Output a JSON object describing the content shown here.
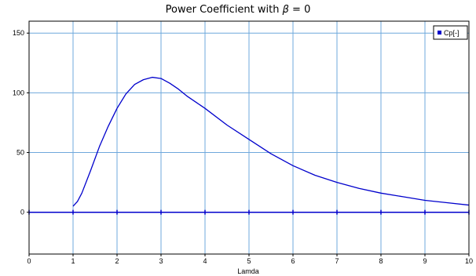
{
  "chart_data": {
    "type": "line",
    "title_prefix": "Power Coefficient with ",
    "title_symbol": "β",
    "title_suffix": " = 0",
    "xlabel": "Lamda",
    "ylabel": "",
    "xlim": [
      0,
      10
    ],
    "ylim": [
      -35,
      160
    ],
    "x_ticks": [
      0,
      1,
      2,
      3,
      4,
      5,
      6,
      7,
      8,
      9,
      10
    ],
    "y_ticks": [
      0,
      50,
      100,
      150
    ],
    "grid": true,
    "legend_position": "top-right",
    "colors": {
      "series": "#0000cc",
      "grid": "#6fa8dc",
      "zero_line": "#0000cc",
      "frame": "#000000",
      "plot_bg": "#ffffff"
    },
    "series": [
      {
        "name": "Cp[-]",
        "x": [
          1.0,
          1.1,
          1.2,
          1.4,
          1.6,
          1.8,
          2.0,
          2.2,
          2.4,
          2.6,
          2.8,
          3.0,
          3.2,
          3.4,
          3.6,
          3.8,
          4.0,
          4.5,
          5.0,
          5.5,
          6.0,
          6.5,
          7.0,
          7.5,
          8.0,
          8.5,
          9.0,
          9.5,
          10.0
        ],
        "y": [
          5,
          9,
          16,
          35,
          55,
          72,
          87,
          99,
          107,
          111,
          113,
          112,
          108,
          103,
          97,
          92,
          87,
          73,
          61,
          49,
          39,
          31,
          25,
          20,
          16,
          13,
          10,
          8,
          6
        ]
      }
    ]
  }
}
